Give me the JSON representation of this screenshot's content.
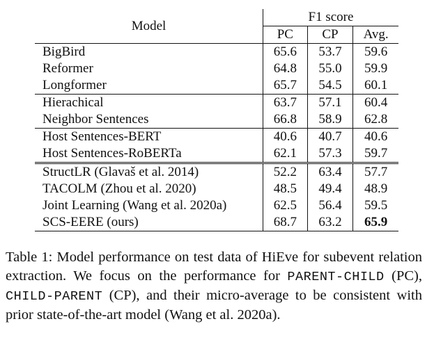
{
  "table": {
    "header": {
      "model": "Model",
      "group": "F1 score",
      "cols": [
        "PC",
        "CP",
        "Avg."
      ]
    },
    "groups": [
      [
        {
          "model": "BigBird",
          "pc": "65.6",
          "cp": "53.7",
          "avg": "59.6"
        },
        {
          "model": "Reformer",
          "pc": "64.8",
          "cp": "55.0",
          "avg": "59.9"
        },
        {
          "model": "Longformer",
          "pc": "65.7",
          "cp": "54.5",
          "avg": "60.1"
        }
      ],
      [
        {
          "model": "Hierachical",
          "pc": "63.7",
          "cp": "57.1",
          "avg": "60.4"
        },
        {
          "model": "Neighbor Sentences",
          "pc": "66.8",
          "cp": "58.9",
          "avg": "62.8"
        }
      ],
      [
        {
          "model": "Host Sentences-BERT",
          "pc": "40.6",
          "cp": "40.7",
          "avg": "40.6"
        },
        {
          "model": "Host Sentences-RoBERTa",
          "pc": "62.1",
          "cp": "57.3",
          "avg": "59.7"
        }
      ],
      [
        {
          "model": "StructLR (Glavaš et al. 2014)",
          "pc": "52.2",
          "cp": "63.4",
          "avg": "57.7"
        },
        {
          "model": "TACOLM (Zhou et al. 2020)",
          "pc": "48.5",
          "cp": "49.4",
          "avg": "48.9"
        },
        {
          "model": "Joint Learning (Wang et al. 2020a)",
          "pc": "62.5",
          "cp": "56.4",
          "avg": "59.5"
        },
        {
          "model": "SCS-EERE (ours)",
          "pc": "68.7",
          "cp": "63.2",
          "avg": "65.9",
          "bold_avg": true
        }
      ]
    ]
  },
  "caption": {
    "part1": "Table 1: Model performance on test data of HiEve for subevent relation extraction. We focus on the performance for ",
    "code1": "PARENT-CHILD",
    "part2": " (PC), ",
    "code2": "CHILD-PARENT",
    "part3": " (CP), and their micro-average to be consistent with prior state-of-the-art model (Wang et al. 2020a)."
  }
}
